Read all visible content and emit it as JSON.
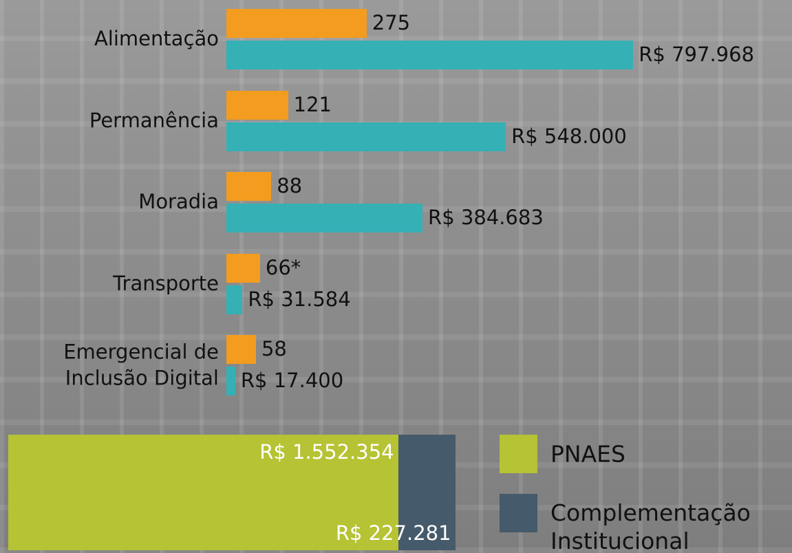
{
  "chart_data": [
    {
      "type": "grouped-hbar",
      "categories": [
        "Alimentação",
        "Permanência",
        "Moradia",
        "Transporte",
        "Emergencial de\nInclusão Digital"
      ],
      "series": [
        {
          "color": "#f39c1f",
          "axis": "x2",
          "values": [
            275,
            121,
            88,
            66,
            58
          ],
          "value_labels": [
            "275",
            "121",
            "88",
            "66*",
            "58"
          ]
        },
        {
          "color": "#35b0b5",
          "values": [
            797968,
            548000,
            384683,
            31584,
            17400
          ],
          "value_labels": [
            "R$ 797.968",
            "R$ 548.000",
            "R$ 384.683",
            "R$ 31.584",
            "R$ 17.400"
          ]
        }
      ],
      "xlim": [
        0,
        1000000
      ],
      "x2lim": [
        0,
        1000
      ]
    },
    {
      "type": "stacked-hbar",
      "series": [
        {
          "name": "PNAES",
          "color": "#b5c334",
          "values": [
            1552354
          ],
          "value_labels": [
            "R$ 1.552.354"
          ]
        },
        {
          "name": "Complementação\nInstitucional",
          "color": "#455a6a",
          "values": [
            227281
          ],
          "value_labels": [
            "R$ 227.281"
          ]
        }
      ],
      "xlim": [
        0,
        1800000
      ]
    }
  ]
}
